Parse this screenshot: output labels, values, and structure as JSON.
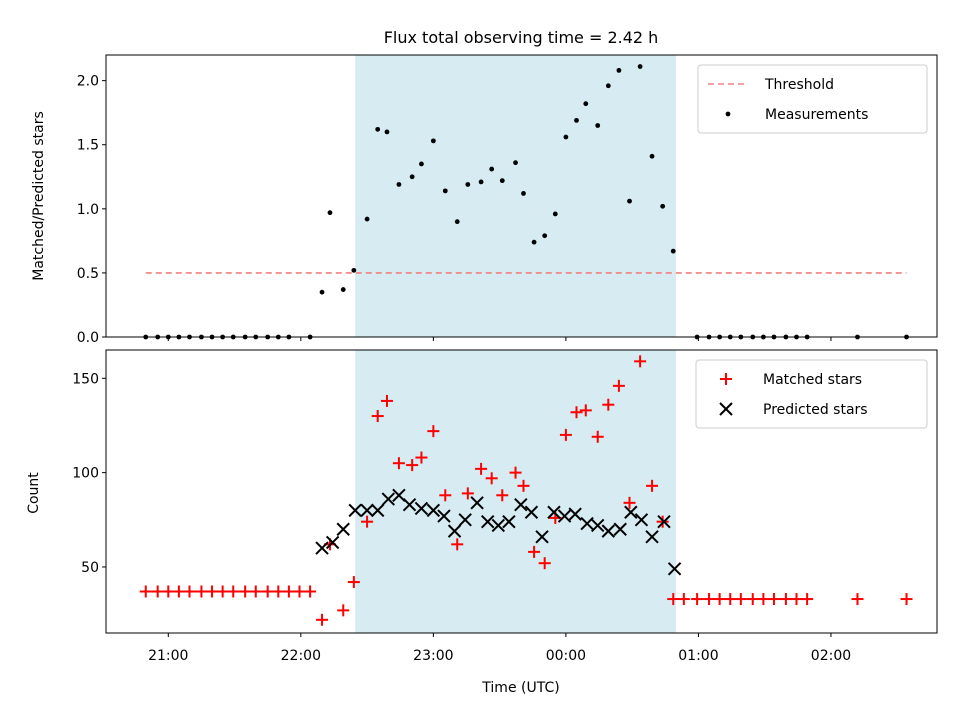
{
  "title": "Flux total observing time = 2.42 h",
  "chart_data": [
    {
      "type": "scatter",
      "title": "Flux total observing time = 2.42 h",
      "ylabel": "Matched/Predicted stars",
      "xlim": [
        20.53,
        26.8
      ],
      "ylim": [
        0.0,
        2.2
      ],
      "y_ticks": [
        {
          "v": 0.0,
          "label": "0.0"
        },
        {
          "v": 0.5,
          "label": "0.5"
        },
        {
          "v": 1.0,
          "label": "1.0"
        },
        {
          "v": 1.5,
          "label": "1.5"
        },
        {
          "v": 2.0,
          "label": "2.0"
        }
      ],
      "shaded_span": [
        22.41,
        24.83
      ],
      "shaded_color": "#add8e6",
      "threshold": {
        "name": "Threshold",
        "value": 0.5,
        "x_range": [
          20.83,
          26.57
        ],
        "color": "#f08080"
      },
      "legend": {
        "placement": "upper right",
        "entries": [
          "Threshold",
          "Measurements"
        ]
      },
      "series": [
        {
          "name": "Measurements",
          "marker": "dot",
          "color": "#000000",
          "x": [
            20.83,
            20.92,
            21.0,
            21.08,
            21.16,
            21.25,
            21.33,
            21.41,
            21.49,
            21.58,
            21.66,
            21.75,
            21.83,
            21.91,
            22.07,
            22.16,
            22.22,
            22.32,
            22.4,
            22.5,
            22.58,
            22.65,
            22.74,
            22.84,
            22.91,
            23.0,
            23.09,
            23.18,
            23.26,
            23.36,
            23.44,
            23.52,
            23.62,
            23.68,
            23.76,
            23.84,
            23.92,
            24.0,
            24.08,
            24.15,
            24.24,
            24.32,
            24.4,
            24.48,
            24.56,
            24.65,
            24.73,
            24.81,
            24.99,
            25.08,
            25.16,
            25.24,
            25.32,
            25.41,
            25.49,
            25.57,
            25.66,
            25.74,
            25.82,
            26.2,
            26.57
          ],
          "y": [
            0,
            0,
            0,
            0,
            0,
            0,
            0,
            0,
            0,
            0,
            0,
            0,
            0,
            0,
            0,
            0.35,
            0.97,
            0.37,
            0.52,
            0.92,
            1.62,
            1.6,
            1.19,
            1.25,
            1.35,
            1.53,
            1.14,
            0.9,
            1.19,
            1.21,
            1.31,
            1.22,
            1.36,
            1.12,
            0.74,
            0.79,
            0.96,
            1.56,
            1.69,
            1.82,
            1.65,
            1.96,
            2.08,
            1.06,
            2.11,
            1.41,
            1.02,
            0.67,
            0,
            0,
            0,
            0,
            0,
            0,
            0,
            0,
            0,
            0,
            0,
            0,
            0
          ]
        }
      ]
    },
    {
      "type": "scatter",
      "xlabel": "Time (UTC)",
      "ylabel": "Count",
      "xlim": [
        20.53,
        26.8
      ],
      "ylim": [
        15,
        165
      ],
      "x_ticks": [
        {
          "v": 21,
          "label": "21:00"
        },
        {
          "v": 22,
          "label": "22:00"
        },
        {
          "v": 23,
          "label": "23:00"
        },
        {
          "v": 24,
          "label": "00:00"
        },
        {
          "v": 25,
          "label": "01:00"
        },
        {
          "v": 26,
          "label": "02:00"
        }
      ],
      "y_ticks": [
        {
          "v": 50,
          "label": "50"
        },
        {
          "v": 100,
          "label": "100"
        },
        {
          "v": 150,
          "label": "150"
        }
      ],
      "shaded_span": [
        22.41,
        24.83
      ],
      "shaded_color": "#add8e6",
      "legend": {
        "placement": "upper right",
        "entries": [
          "Matched stars",
          "Predicted stars"
        ]
      },
      "series": [
        {
          "name": "Matched stars",
          "marker": "plus",
          "color": "#ff0000",
          "x": [
            20.83,
            20.92,
            21.0,
            21.08,
            21.16,
            21.25,
            21.33,
            21.41,
            21.49,
            21.58,
            21.66,
            21.75,
            21.83,
            21.91,
            21.99,
            22.07,
            22.16,
            22.22,
            22.32,
            22.4,
            22.5,
            22.58,
            22.65,
            22.74,
            22.84,
            22.91,
            23.0,
            23.09,
            23.18,
            23.26,
            23.36,
            23.44,
            23.52,
            23.62,
            23.68,
            23.76,
            23.84,
            23.92,
            24.0,
            24.08,
            24.15,
            24.24,
            24.32,
            24.4,
            24.48,
            24.56,
            24.65,
            24.73,
            24.81,
            24.89,
            24.99,
            25.08,
            25.16,
            25.24,
            25.32,
            25.41,
            25.49,
            25.57,
            25.66,
            25.74,
            25.82,
            26.2,
            26.57
          ],
          "y": [
            37,
            37,
            37,
            37,
            37,
            37,
            37,
            37,
            37,
            37,
            37,
            37,
            37,
            37,
            37,
            37,
            22,
            62,
            27,
            42,
            74,
            130,
            138,
            105,
            104,
            108,
            122,
            88,
            62,
            89,
            102,
            97,
            88,
            100,
            93,
            58,
            52,
            76,
            120,
            132,
            133,
            119,
            136,
            146,
            84,
            159,
            93,
            74,
            33,
            33,
            33,
            33,
            33,
            33,
            33,
            33,
            33,
            33,
            33,
            33,
            33,
            33,
            33
          ]
        },
        {
          "name": "Predicted stars",
          "marker": "x",
          "color": "#000000",
          "x": [
            22.16,
            22.24,
            22.32,
            22.41,
            22.5,
            22.58,
            22.66,
            22.74,
            22.82,
            22.91,
            23.0,
            23.08,
            23.16,
            23.24,
            23.33,
            23.41,
            23.49,
            23.57,
            23.66,
            23.74,
            23.82,
            23.91,
            23.99,
            24.07,
            24.16,
            24.24,
            24.32,
            24.41,
            24.49,
            24.57,
            24.65,
            24.74,
            24.82
          ],
          "y": [
            60,
            63,
            70,
            80,
            80,
            80,
            86,
            88,
            83,
            81,
            80,
            77,
            69,
            75,
            84,
            74,
            72,
            74,
            83,
            79,
            66,
            79,
            77,
            78,
            73,
            72,
            69,
            70,
            79,
            75,
            66,
            74,
            49
          ]
        }
      ]
    }
  ]
}
